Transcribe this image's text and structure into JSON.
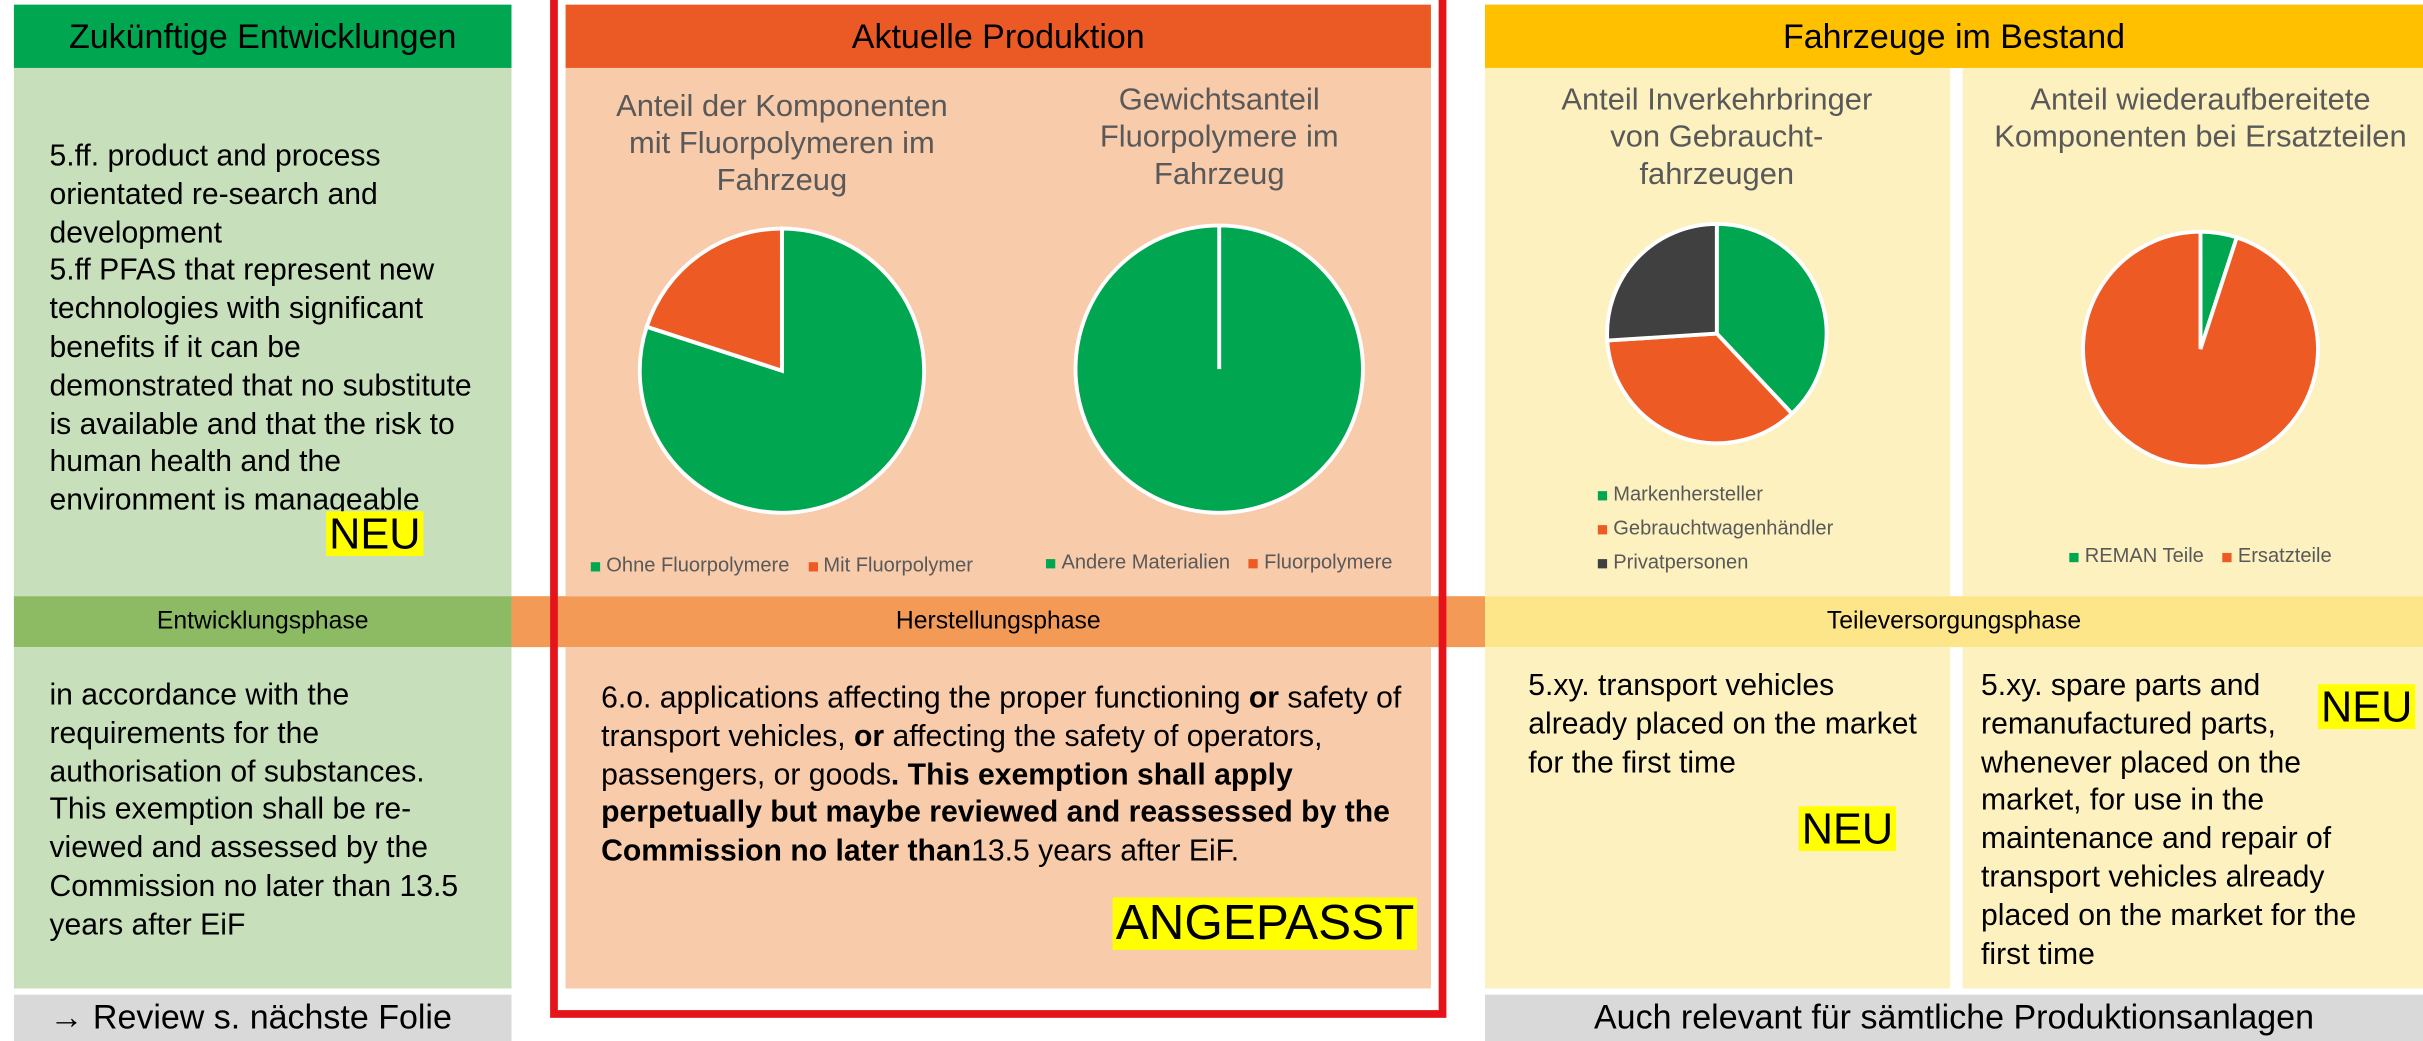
{
  "left": {
    "header": "Zukünftige Entwicklungen",
    "paragraphs": [
      "5.ff. product and process orientated re-search and development",
      "5.ff  PFAS that represent new technologies with significant benefits if it can be demonstrated that no substitute is available and that the risk to human health and the environment is manageable"
    ],
    "badge": "NEU",
    "phase": "Entwicklungsphase",
    "lower_text": "in accordance with the requirements for the authorisation of substances. This exemption shall be re-viewed and assessed by the Commission no later than 13.5 years after EiF",
    "footer": "→ Review s. nächste Folie"
  },
  "middle": {
    "header": "Aktuelle Produktion",
    "phase": "Herstellungsphase",
    "runs": [
      {
        "text": "6.o. applications affecting the proper functioning ",
        "bold": false
      },
      {
        "text": "or",
        "bold": true
      },
      {
        "text": " safety of transport vehicles, ",
        "bold": false
      },
      {
        "text": "or",
        "bold": true
      },
      {
        "text": " affecting the safety of operators, passengers, or goods",
        "bold": false
      },
      {
        "text": ". This exemption shall apply perpetually but maybe reviewed and reassessed by the Commission no later than",
        "bold": true
      },
      {
        "text": "13.5 years after EiF.",
        "bold": false
      }
    ],
    "badge": "ANGEPASST"
  },
  "right": {
    "header": "Fahrzeuge im Bestand",
    "phase": "Teileversorgungsphase",
    "lower_left": "5.xy. transport vehicles already placed on the market for the first time",
    "lower_left_badge": "NEU",
    "lower_right": "5.xy. spare parts and remanufactured parts, whenever placed on the market, for use in the maintenance and repair of transport vehicles already placed on the market for the first time",
    "lower_right_badge": "NEU",
    "footer": "Auch relevant für sämtliche Produktionsanlagen"
  },
  "charts": [
    {
      "type": "pie",
      "title": "Anteil der Komponenten mit Fluorpolymeren im Fahrzeug",
      "legend": "bottom",
      "series": [
        {
          "name": "Ohne Fluorpolymere",
          "color": "#00a650",
          "value": 80
        },
        {
          "name": "Mit Fluorpolymer",
          "color": "#ee5a24",
          "value": 20
        }
      ]
    },
    {
      "type": "pie",
      "title": "Gewichtsanteil Fluorpolymere im Fahrzeug",
      "legend": "bottom",
      "series": [
        {
          "name": "Andere Materialien",
          "color": "#00a650",
          "value": 100
        },
        {
          "name": "Fluorpolymere",
          "color": "#ee5a24",
          "value": 0
        }
      ]
    },
    {
      "type": "pie",
      "title": "Anteil Inverkehrbringer von Gebraucht-fahrzeugen",
      "legend": "bottom-stacked",
      "series": [
        {
          "name": "Markenhersteller",
          "color": "#00a650",
          "value": 38
        },
        {
          "name": "Gebrauchtwagenhändler",
          "color": "#ee5a24",
          "value": 36
        },
        {
          "name": "Privatpersonen",
          "color": "#404040",
          "value": 26
        }
      ]
    },
    {
      "type": "pie",
      "title": "Anteil wiederaufbereitete Komponenten bei Ersatzteilen",
      "legend": "bottom",
      "series": [
        {
          "name": "REMAN Teile",
          "color": "#00a650",
          "value": 5
        },
        {
          "name": "Ersatzteile",
          "color": "#ee5a24",
          "value": 95
        }
      ]
    }
  ]
}
